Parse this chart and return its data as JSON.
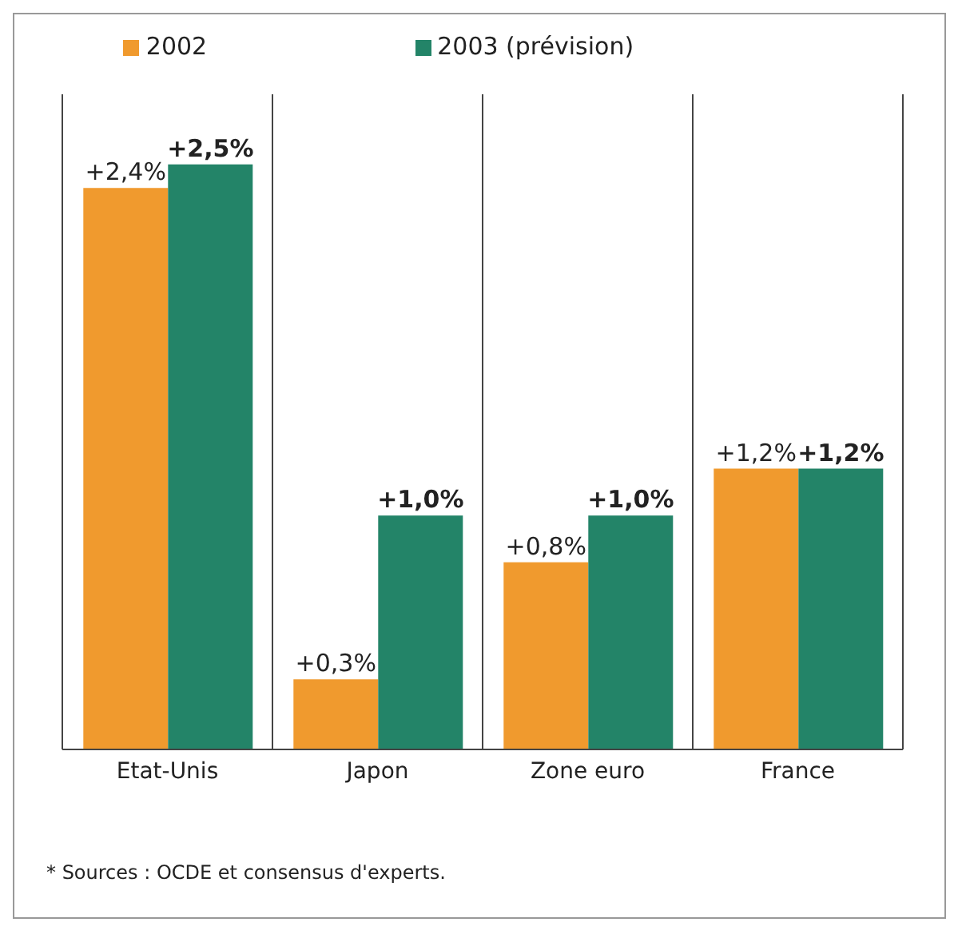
{
  "chart_data": {
    "type": "bar",
    "categories": [
      "Etat-Unis",
      "Japon",
      "Zone euro",
      "France"
    ],
    "series": [
      {
        "name": "2002",
        "color": "#f09a2e",
        "values": [
          2.4,
          0.3,
          0.8,
          1.2
        ],
        "value_labels": [
          "+2,4%",
          "+0,3%",
          "+0,8%",
          "+1,2%"
        ]
      },
      {
        "name": "2003 (prévision)",
        "color": "#238468",
        "values": [
          2.5,
          1.0,
          1.0,
          1.2
        ],
        "value_labels": [
          "+2,5%",
          "+1,0%",
          "+1,0%",
          "+1,2%"
        ]
      }
    ],
    "grid": "x",
    "legend": "top",
    "annotations": [
      "* Sources : OCDE et consensus d'experts."
    ]
  }
}
